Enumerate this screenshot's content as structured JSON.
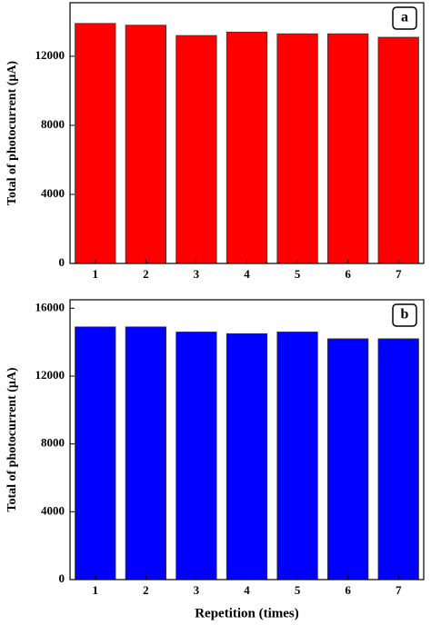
{
  "chart_data": [
    {
      "type": "bar",
      "panel_label": "a",
      "y_label": "Total of photocurrent (μA)",
      "categories": [
        "1",
        "2",
        "3",
        "4",
        "5",
        "6",
        "7"
      ],
      "values": [
        13900,
        13800,
        13200,
        13400,
        13300,
        13300,
        13100
      ],
      "color": "#ff0000",
      "ylim": [
        0,
        15100
      ],
      "yticks": [
        0,
        4000,
        8000,
        12000
      ]
    },
    {
      "type": "bar",
      "panel_label": "b",
      "y_label": "Total of photocurrent (μA)",
      "x_label": "Repetition (times)",
      "categories": [
        "1",
        "2",
        "3",
        "4",
        "5",
        "6",
        "7"
      ],
      "values": [
        14900,
        14900,
        14600,
        14500,
        14600,
        14200,
        14200
      ],
      "color": "#0000ff",
      "ylim": [
        0,
        16500
      ],
      "yticks": [
        0,
        4000,
        8000,
        12000,
        16000
      ]
    }
  ]
}
